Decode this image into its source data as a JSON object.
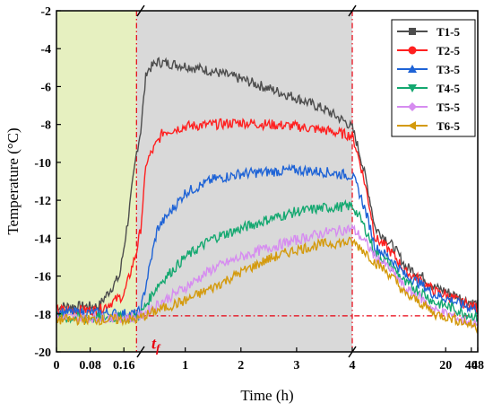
{
  "chart_data": {
    "type": "line",
    "xlabel": "Time (h)",
    "ylabel": "Temperature (°C)",
    "ylim": [
      -20,
      -2
    ],
    "yticks": [
      -20,
      -18,
      -16,
      -14,
      -12,
      -10,
      -8,
      -6,
      -4,
      -2
    ],
    "x_axis": {
      "kind": "piecewise",
      "segments": [
        {
          "range": [
            0,
            0.2
          ],
          "ticks": [
            "0",
            "0.08",
            "0.16"
          ]
        },
        {
          "range": [
            0.2,
            4
          ],
          "ticks": [
            "1",
            "2",
            "3",
            "4"
          ]
        },
        {
          "range": [
            4,
            48
          ],
          "ticks": [
            "20",
            "40",
            "48"
          ]
        }
      ],
      "tick_labels": [
        "0",
        "0.08",
        "0.16",
        "1",
        "2",
        "3",
        "4",
        "20",
        "40",
        "48"
      ],
      "highlighted_tick": "4"
    },
    "regions": [
      {
        "from": 0,
        "to": 0.19,
        "color": "#e6f0c0"
      },
      {
        "from": 0.19,
        "to": 4,
        "color": "#d9d9d9"
      }
    ],
    "reference_line": {
      "y": -18.1,
      "color": "#e8000f"
    },
    "vertical_markers": [
      0.19,
      4
    ],
    "annotation": {
      "text": "t",
      "subscript": "f",
      "x": 0.2,
      "y": -19.6,
      "color": "#e8000f"
    },
    "legend_position": "top-right",
    "series": [
      {
        "name": "T1-5",
        "color": "#4d4d4d",
        "marker": "square",
        "points": [
          [
            0,
            -17.6
          ],
          [
            0.1,
            -17.6
          ],
          [
            0.15,
            -16
          ],
          [
            0.17,
            -13
          ],
          [
            0.19,
            -9.5
          ],
          [
            0.2,
            -8.3
          ],
          [
            0.3,
            -5.2
          ],
          [
            0.5,
            -4.7
          ],
          [
            1,
            -4.9
          ],
          [
            1.5,
            -5.2
          ],
          [
            2,
            -5.6
          ],
          [
            2.5,
            -6.1
          ],
          [
            3,
            -6.6
          ],
          [
            3.5,
            -7.2
          ],
          [
            3.9,
            -7.9
          ],
          [
            4,
            -8.2
          ],
          [
            5,
            -13.5
          ],
          [
            8,
            -15.5
          ],
          [
            15,
            -16.6
          ],
          [
            25,
            -17
          ],
          [
            35,
            -17.3
          ],
          [
            48,
            -17.5
          ]
        ]
      },
      {
        "name": "T2-5",
        "color": "#ff2020",
        "marker": "circle",
        "points": [
          [
            0,
            -17.8
          ],
          [
            0.1,
            -17.8
          ],
          [
            0.16,
            -17
          ],
          [
            0.19,
            -14.7
          ],
          [
            0.2,
            -13.5
          ],
          [
            0.3,
            -10
          ],
          [
            0.6,
            -8.4
          ],
          [
            1,
            -8.1
          ],
          [
            2,
            -7.9
          ],
          [
            3,
            -8.1
          ],
          [
            3.5,
            -8.3
          ],
          [
            4,
            -8.6
          ],
          [
            5,
            -14
          ],
          [
            8,
            -15.8
          ],
          [
            15,
            -16.8
          ],
          [
            30,
            -17.4
          ],
          [
            48,
            -17.7
          ]
        ]
      },
      {
        "name": "T3-5",
        "color": "#1e63d6",
        "marker": "triangle-up",
        "points": [
          [
            0,
            -17.9
          ],
          [
            0.19,
            -18
          ],
          [
            0.2,
            -17.8
          ],
          [
            0.5,
            -13.5
          ],
          [
            1,
            -11.6
          ],
          [
            1.5,
            -10.9
          ],
          [
            2,
            -10.6
          ],
          [
            2.5,
            -10.5
          ],
          [
            3,
            -10.4
          ],
          [
            3.5,
            -10.5
          ],
          [
            4,
            -10.7
          ],
          [
            5,
            -14.5
          ],
          [
            8,
            -16
          ],
          [
            15,
            -17
          ],
          [
            30,
            -17.5
          ],
          [
            48,
            -17.8
          ]
        ]
      },
      {
        "name": "T4-5",
        "color": "#14a870",
        "marker": "triangle-down",
        "points": [
          [
            0,
            -18.2
          ],
          [
            0.19,
            -18.2
          ],
          [
            0.2,
            -18
          ],
          [
            0.5,
            -16.5
          ],
          [
            1,
            -15
          ],
          [
            1.5,
            -14
          ],
          [
            2,
            -13.5
          ],
          [
            2.5,
            -13
          ],
          [
            3,
            -12.6
          ],
          [
            3.5,
            -12.4
          ],
          [
            4,
            -12.3
          ],
          [
            5,
            -14.8
          ],
          [
            8,
            -16.4
          ],
          [
            15,
            -17.4
          ],
          [
            30,
            -17.9
          ],
          [
            48,
            -18.2
          ]
        ]
      },
      {
        "name": "T5-5",
        "color": "#d68cf0",
        "marker": "diamond",
        "points": [
          [
            0,
            -18.2
          ],
          [
            0.19,
            -18.2
          ],
          [
            0.2,
            -18.1
          ],
          [
            0.5,
            -17.5
          ],
          [
            1,
            -16.6
          ],
          [
            1.5,
            -15.6
          ],
          [
            2,
            -15
          ],
          [
            2.5,
            -14.5
          ],
          [
            3,
            -14.1
          ],
          [
            3.5,
            -13.7
          ],
          [
            4,
            -13.5
          ],
          [
            5,
            -15
          ],
          [
            8,
            -16.7
          ],
          [
            15,
            -17.8
          ],
          [
            30,
            -18.3
          ],
          [
            48,
            -18.6
          ]
        ]
      },
      {
        "name": "T6-5",
        "color": "#d49a0c",
        "marker": "triangle-left",
        "points": [
          [
            0,
            -18.3
          ],
          [
            0.19,
            -18.3
          ],
          [
            0.2,
            -18.2
          ],
          [
            0.5,
            -17.8
          ],
          [
            1,
            -17.3
          ],
          [
            1.5,
            -16.6
          ],
          [
            2,
            -15.8
          ],
          [
            2.5,
            -15.1
          ],
          [
            3,
            -14.6
          ],
          [
            3.5,
            -14.3
          ],
          [
            4,
            -14.2
          ],
          [
            5,
            -15.3
          ],
          [
            8,
            -17
          ],
          [
            15,
            -18
          ],
          [
            30,
            -18.4
          ],
          [
            48,
            -18.7
          ]
        ]
      }
    ]
  }
}
